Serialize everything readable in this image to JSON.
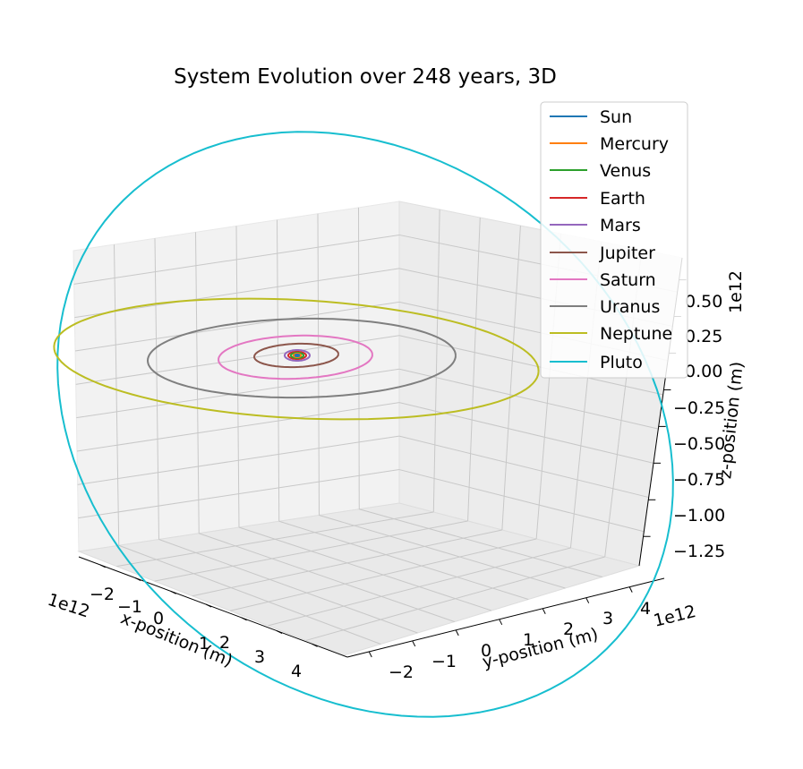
{
  "chart_data": {
    "type": "line",
    "projection": "3d",
    "title": "System Evolution over 248 years, 3D",
    "xlabel": "x-position (m)",
    "ylabel": "y-position (m)",
    "zlabel": "z-position (m)",
    "x_scale_label": "1e12",
    "y_scale_label": "1e12",
    "z_scale_label": "1e12",
    "x_ticks": [
      "−2",
      "−1",
      "0",
      "1",
      "2",
      "3",
      "4"
    ],
    "y_ticks": [
      "−2",
      "−1",
      "0",
      "1",
      "2",
      "3",
      "4"
    ],
    "z_ticks": [
      "0.50",
      "0.25",
      "0.00",
      "−0.25",
      "−0.50",
      "−0.75",
      "−1.00",
      "−1.25"
    ],
    "grid": true,
    "legend": "top-right",
    "series": [
      {
        "name": "Sun",
        "color": "#1f77b4"
      },
      {
        "name": "Mercury",
        "color": "#ff7f0e"
      },
      {
        "name": "Venus",
        "color": "#2ca02c"
      },
      {
        "name": "Earth",
        "color": "#d62728"
      },
      {
        "name": "Mars",
        "color": "#9467bd"
      },
      {
        "name": "Jupiter",
        "color": "#8c564b"
      },
      {
        "name": "Saturn",
        "color": "#e377c2"
      },
      {
        "name": "Uranus",
        "color": "#7f7f7f"
      },
      {
        "name": "Neptune",
        "color": "#bcbd22"
      },
      {
        "name": "Pluto",
        "color": "#17becf"
      }
    ]
  }
}
